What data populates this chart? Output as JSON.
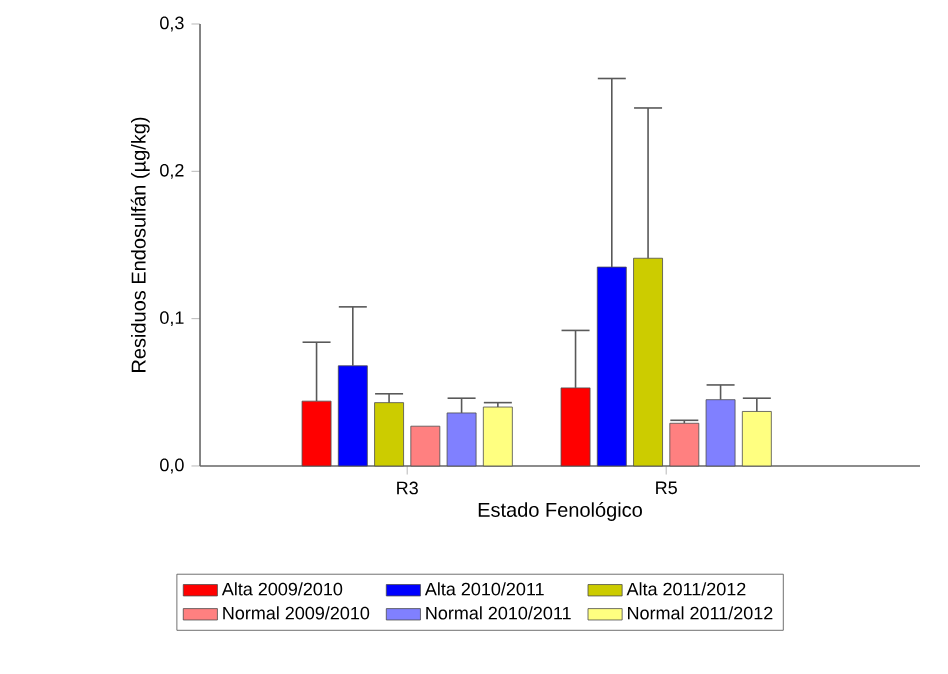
{
  "chart_data": {
    "type": "bar",
    "xlabel": "Estado Fenológico",
    "ylabel": "Residuos Endosulfán (µg/kg)",
    "categories": [
      "R3",
      "R5"
    ],
    "ylim": [
      0,
      0.3
    ],
    "yticks": [
      {
        "value": 0,
        "label": "0,0"
      },
      {
        "value": 0.1,
        "label": "0,1"
      },
      {
        "value": 0.2,
        "label": "0,2"
      },
      {
        "value": 0.3,
        "label": "0,3"
      }
    ],
    "grid": false,
    "legend": "bottom",
    "series": [
      {
        "name": "Alta 2009/2010",
        "color": "#ff0000",
        "values": [
          0.044,
          0.053
        ],
        "errors": [
          [
            0.044,
            0.084
          ],
          [
            0.053,
            0.092
          ]
        ]
      },
      {
        "name": "Alta 2010/2011",
        "color": "#0000ff",
        "values": [
          0.068,
          0.135
        ],
        "errors": [
          [
            0.068,
            0.108
          ],
          [
            0.135,
            0.263
          ]
        ]
      },
      {
        "name": "Alta 2011/2012",
        "color": "#cccc00",
        "values": [
          0.043,
          0.141
        ],
        "errors": [
          [
            0.043,
            0.049
          ],
          [
            0.141,
            0.243
          ]
        ]
      },
      {
        "name": "Normal 2009/2010",
        "color": "#ff8080",
        "values": [
          0.027,
          0.029
        ],
        "errors": [
          null,
          [
            0.029,
            0.031
          ]
        ]
      },
      {
        "name": "Normal 2010/2011",
        "color": "#8080ff",
        "values": [
          0.036,
          0.045
        ],
        "errors": [
          [
            0.036,
            0.046
          ],
          [
            0.045,
            0.055
          ]
        ]
      },
      {
        "name": "Normal 2011/2012",
        "color": "#ffff80",
        "values": [
          0.04,
          0.037
        ],
        "errors": [
          [
            0.04,
            0.043
          ],
          [
            0.037,
            0.046
          ]
        ]
      }
    ]
  }
}
